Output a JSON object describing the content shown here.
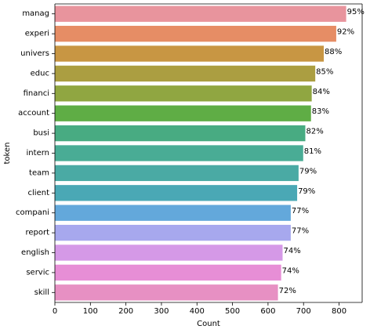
{
  "chart_data": {
    "type": "bar",
    "orientation": "horizontal",
    "xlabel": "Count",
    "ylabel": "token",
    "xlim": [
      0,
      865
    ],
    "xticks": [
      0,
      100,
      200,
      300,
      400,
      500,
      600,
      700,
      800
    ],
    "grid": false,
    "categories": [
      "manag",
      "experi",
      "univers",
      "educ",
      "financi",
      "account",
      "busi",
      "intern",
      "team",
      "client",
      "compani",
      "report",
      "english",
      "servic",
      "skill"
    ],
    "values": [
      820,
      792,
      757,
      733,
      723,
      721,
      705,
      699,
      686,
      682,
      664,
      664,
      641,
      637,
      628
    ],
    "labels": [
      "95%",
      "92%",
      "88%",
      "85%",
      "84%",
      "83%",
      "82%",
      "81%",
      "79%",
      "79%",
      "77%",
      "77%",
      "74%",
      "74%",
      "72%"
    ],
    "colors": [
      "#e8949d",
      "#e68d65",
      "#c89643",
      "#ab9e41",
      "#90a641",
      "#5fad45",
      "#48ab82",
      "#49ac95",
      "#4aaaa4",
      "#4aa8b5",
      "#63a8db",
      "#a7a8ee",
      "#d599e7",
      "#e78ed6",
      "#e790c3"
    ]
  }
}
